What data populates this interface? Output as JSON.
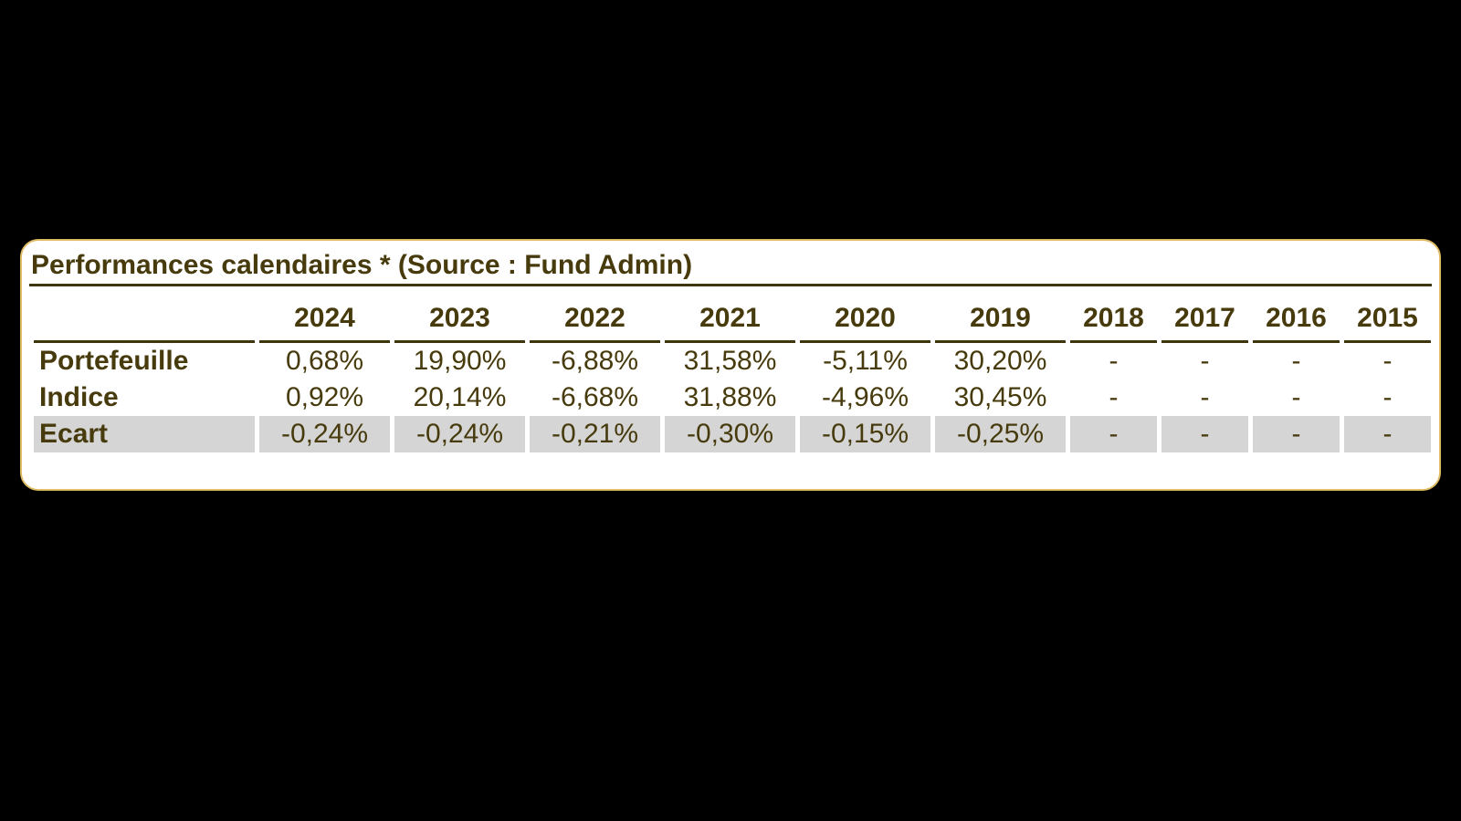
{
  "page": {
    "background_color": "#000000"
  },
  "panel": {
    "title": "Performances calendaires * (Source : Fund Admin)",
    "background_color": "#ffffff",
    "border_color": "#e0bd66",
    "text_color": "#473b0e",
    "rule_color": "#3f350a",
    "highlight_row_color": "#d5d5d5"
  },
  "table": {
    "columns": [
      "2024",
      "2023",
      "2022",
      "2021",
      "2020",
      "2019",
      "2018",
      "2017",
      "2016",
      "2015"
    ],
    "rows": [
      {
        "label": "Portefeuille",
        "values": [
          "0,68%",
          "19,90%",
          "-6,88%",
          "31,58%",
          "-5,11%",
          "30,20%",
          "-",
          "-",
          "-",
          "-"
        ]
      },
      {
        "label": "Indice",
        "values": [
          "0,92%",
          "20,14%",
          "-6,68%",
          "31,88%",
          "-4,96%",
          "30,45%",
          "-",
          "-",
          "-",
          "-"
        ]
      },
      {
        "label": "Ecart",
        "values": [
          "-0,24%",
          "-0,24%",
          "-0,21%",
          "-0,30%",
          "-0,15%",
          "-0,25%",
          "-",
          "-",
          "-",
          "-"
        ],
        "highlighted": true
      }
    ]
  },
  "chart_data": {
    "type": "table",
    "title": "Performances calendaires * (Source : Fund Admin)",
    "categories": [
      "2024",
      "2023",
      "2022",
      "2021",
      "2020",
      "2019",
      "2018",
      "2017",
      "2016",
      "2015"
    ],
    "series": [
      {
        "name": "Portefeuille",
        "values": [
          0.68,
          19.9,
          -6.88,
          31.58,
          -5.11,
          30.2,
          null,
          null,
          null,
          null
        ]
      },
      {
        "name": "Indice",
        "values": [
          0.92,
          20.14,
          -6.68,
          31.88,
          -4.96,
          30.45,
          null,
          null,
          null,
          null
        ]
      },
      {
        "name": "Ecart",
        "values": [
          -0.24,
          -0.24,
          -0.21,
          -0.3,
          -0.15,
          -0.25,
          null,
          null,
          null,
          null
        ]
      }
    ]
  }
}
